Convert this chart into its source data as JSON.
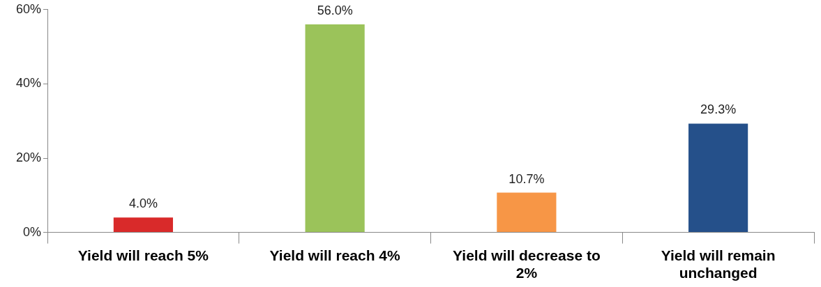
{
  "chart_data": {
    "type": "bar",
    "categories": [
      "Yield will reach 5%",
      "Yield will reach 4%",
      "Yield will decrease to 2%",
      "Yield will remain unchanged"
    ],
    "values": [
      4.0,
      56.0,
      10.7,
      29.3
    ],
    "colors": [
      "#d92a2a",
      "#9bc35a",
      "#f79646",
      "#25508a"
    ],
    "value_labels": [
      "4.0%",
      "56.0%",
      "10.7%",
      "29.3%"
    ],
    "ylim": [
      0,
      60
    ],
    "yticks": [
      {
        "value": 0,
        "label": "0%"
      },
      {
        "value": 20,
        "label": "20%"
      },
      {
        "value": 40,
        "label": "40%"
      },
      {
        "value": 60,
        "label": "60%"
      }
    ],
    "grid": false,
    "legend": false
  }
}
